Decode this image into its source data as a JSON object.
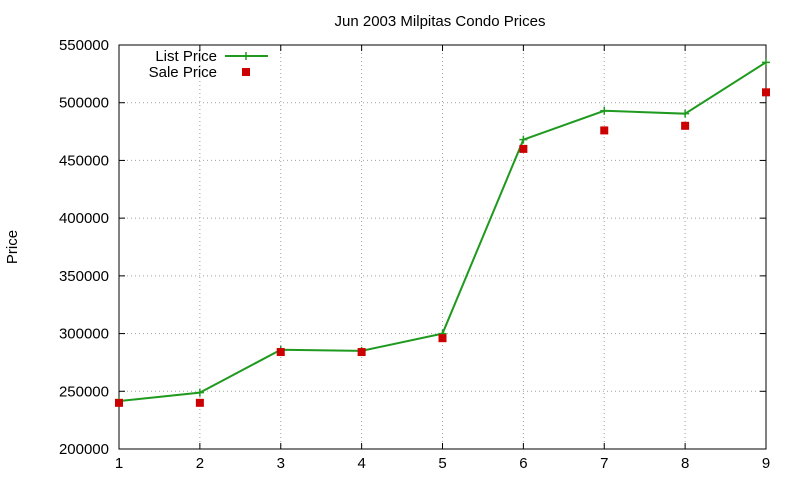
{
  "chart_data": {
    "type": "line",
    "title": "Jun 2003 Milpitas Condo Prices",
    "xlabel": "",
    "ylabel": "Price",
    "xlim": [
      1,
      9
    ],
    "ylim": [
      200000,
      550000
    ],
    "xticks": [
      1,
      2,
      3,
      4,
      5,
      6,
      7,
      8,
      9
    ],
    "yticks": [
      200000,
      250000,
      300000,
      350000,
      400000,
      450000,
      500000,
      550000
    ],
    "grid": true,
    "legend_position": "top-left",
    "x": [
      1,
      2,
      3,
      4,
      5,
      6,
      7,
      8,
      9
    ],
    "series": [
      {
        "name": "List Price",
        "style": "line-plus",
        "color": "#1f9a1f",
        "values": [
          241500,
          248800,
          286000,
          285000,
          300000,
          468000,
          493000,
          490500,
          535000
        ]
      },
      {
        "name": "Sale Price",
        "style": "square-points",
        "color": "#cc0000",
        "values": [
          240000,
          240000,
          284000,
          284000,
          296000,
          460000,
          476000,
          480000,
          509000
        ]
      }
    ]
  }
}
